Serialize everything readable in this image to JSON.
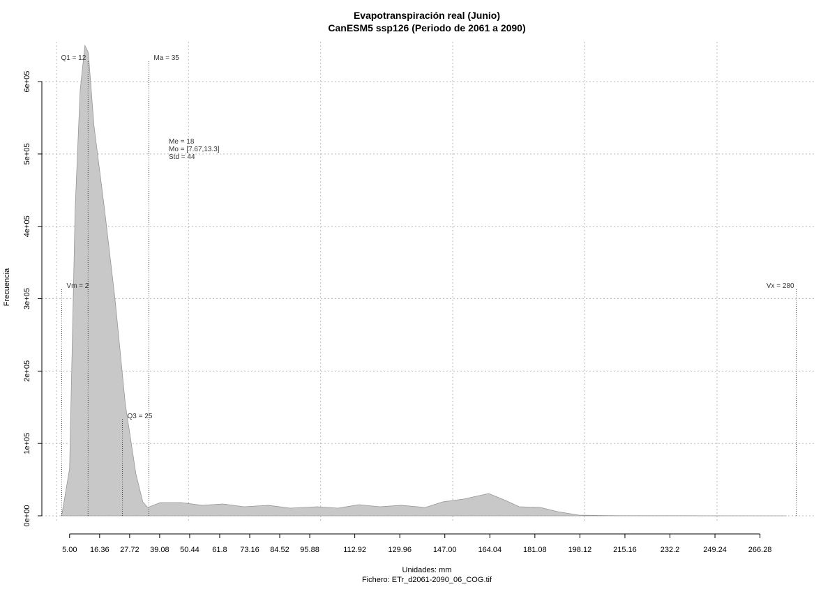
{
  "chart_data": {
    "type": "area",
    "title": "Evapotranspiración real (Junio)",
    "subtitle": "CanESM5 ssp126 (Periodo de 2061 a 2090)",
    "x_label": "Unidades: mm",
    "caption": "Fichero: ETr_d2061-2090_06_COG.tif",
    "y_label": "Frecuencia",
    "color": "#c8c8c8",
    "line_color": "#969696",
    "grid": true,
    "x": [
      2,
      5,
      7.1,
      9,
      10.8,
      12.1,
      14.2,
      18.2,
      22.2,
      26.1,
      30.1,
      32.7,
      34.6,
      39.3,
      47.2,
      55.1,
      63.1,
      71,
      80.2,
      88.5,
      98.7,
      106.6,
      114.5,
      122.4,
      130.4,
      139.6,
      146.2,
      154.1,
      163.6,
      170,
      175.2,
      183.2,
      189.7,
      197.7,
      208.2,
      276.3
    ],
    "values": [
      0,
      65500,
      424000,
      588000,
      650000,
      640000,
      540000,
      424000,
      299000,
      154000,
      57800,
      19300,
      11600,
      18300,
      18300,
      14500,
      16400,
      12500,
      14500,
      10600,
      12500,
      10600,
      15400,
      12500,
      14500,
      11600,
      19300,
      23100,
      30800,
      21200,
      12500,
      11600,
      5800,
      1000,
      300,
      0
    ],
    "xlim": [
      -5.5,
      287.5
    ],
    "ylim": [
      -7700,
      655000
    ],
    "xticks": [
      {
        "value": 5,
        "label": "5.00"
      },
      16.36,
      27.72,
      39.08,
      50.44,
      61.8,
      73.16,
      84.52,
      95.88,
      112.92,
      129.96,
      {
        "value": 147,
        "label": "147.00"
      },
      164.04,
      181.08,
      198.12,
      215.16,
      232.2,
      249.24,
      266.28
    ],
    "xgrid": [
      0,
      50,
      100,
      150,
      200,
      250
    ],
    "yticks": [
      {
        "value": 0,
        "label": "0e+00"
      },
      {
        "value": 100000,
        "label": "1e+05"
      },
      {
        "value": 200000,
        "label": "2e+05"
      },
      {
        "value": 300000,
        "label": "3e+05"
      },
      {
        "value": 400000,
        "label": "4e+05"
      },
      {
        "value": 500000,
        "label": "5e+05"
      },
      {
        "value": 600000,
        "label": "6e+05"
      }
    ],
    "markers": [
      {
        "label": "Q1 = 12",
        "x": 12,
        "y": 630000,
        "side": "left"
      },
      {
        "label": "Ma = 35",
        "x": 35,
        "y": 630000,
        "side": "right"
      },
      {
        "label": "Vm = 2",
        "x": 2,
        "y": 315000,
        "side": "right"
      },
      {
        "label": "Q3 = 25",
        "x": 25,
        "y": 135000,
        "side": "right"
      },
      {
        "label": "Vx = 280",
        "x": 280,
        "y": 315000,
        "side": "left"
      }
    ],
    "stats": [
      "Me = 18",
      "Mo = [7.67,13.3]",
      "Std = 44"
    ]
  }
}
